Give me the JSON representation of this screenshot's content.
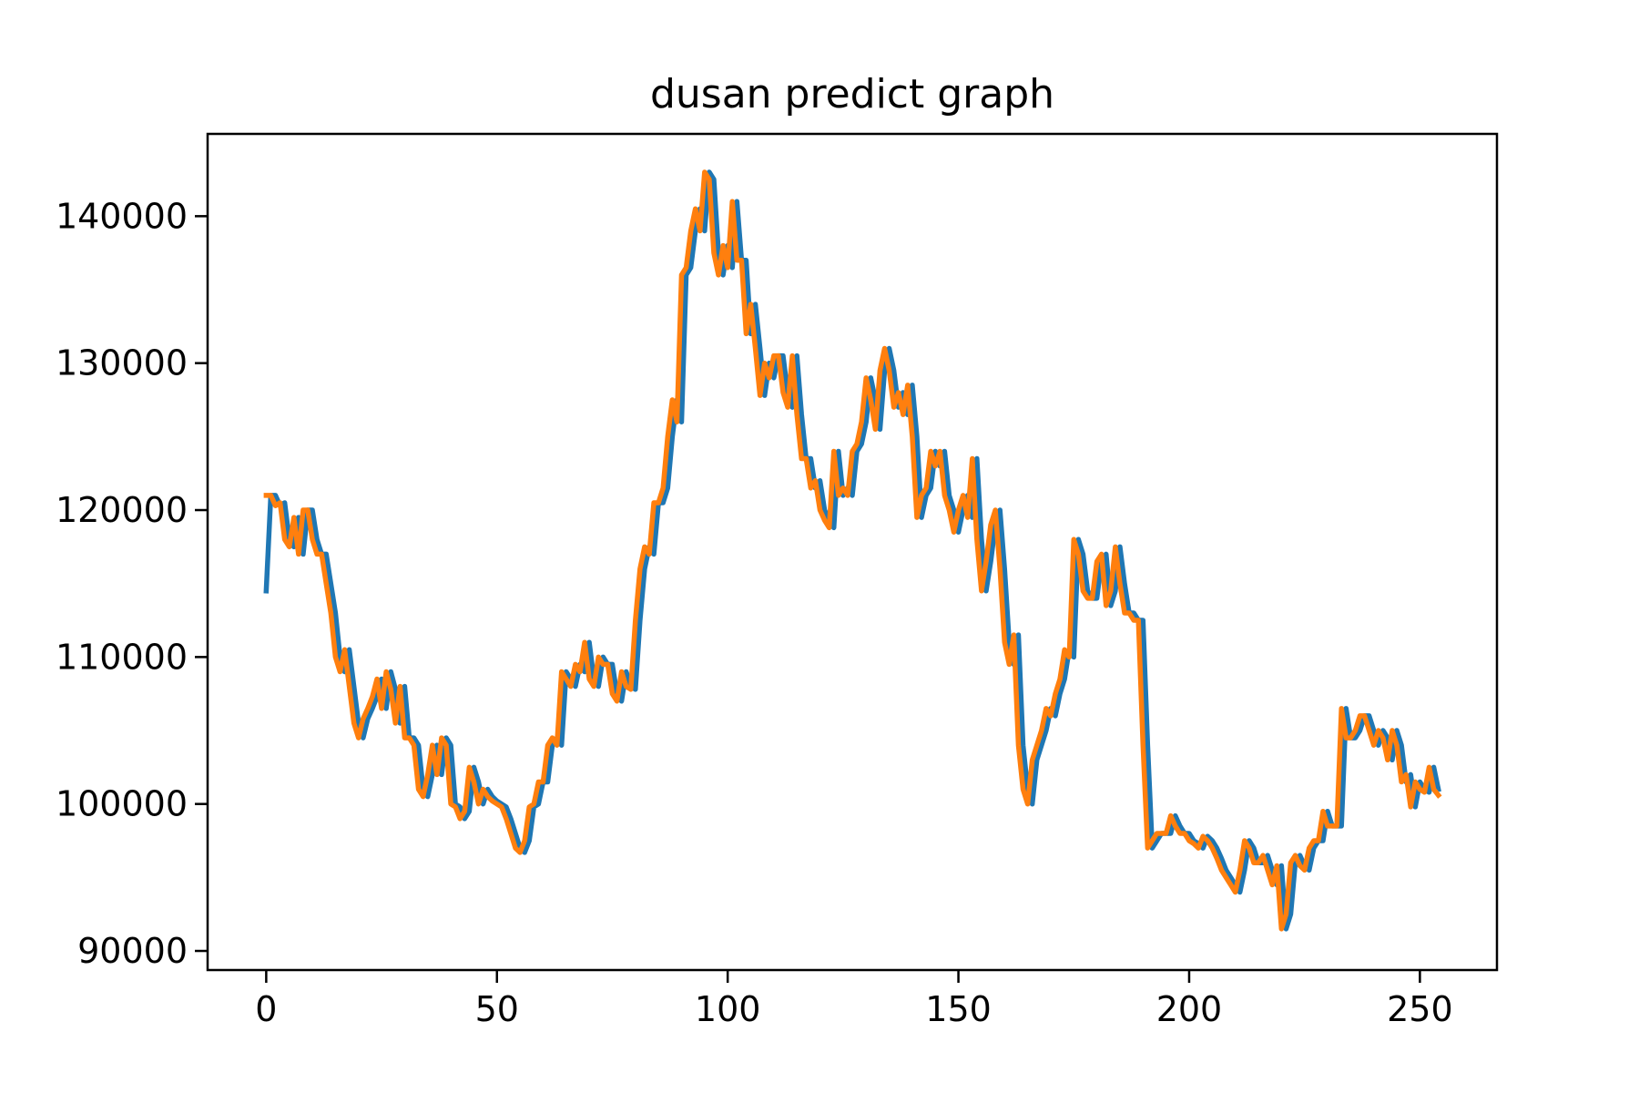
{
  "chart_data": {
    "type": "line",
    "title": "dusan predict graph",
    "x": [
      0,
      1,
      2,
      3,
      4,
      5,
      6,
      7,
      8,
      9,
      10,
      11,
      12,
      13,
      14,
      15,
      16,
      17,
      18,
      19,
      20,
      21,
      22,
      23,
      24,
      25,
      26,
      27,
      28,
      29,
      30,
      31,
      32,
      33,
      34,
      35,
      36,
      37,
      38,
      39,
      40,
      41,
      42,
      43,
      44,
      45,
      46,
      47,
      48,
      49,
      50,
      51,
      52,
      53,
      54,
      55,
      56,
      57,
      58,
      59,
      60,
      61,
      62,
      63,
      64,
      65,
      66,
      67,
      68,
      69,
      70,
      71,
      72,
      73,
      74,
      75,
      76,
      77,
      78,
      79,
      80,
      81,
      82,
      83,
      84,
      85,
      86,
      87,
      88,
      89,
      90,
      91,
      92,
      93,
      94,
      95,
      96,
      97,
      98,
      99,
      100,
      101,
      102,
      103,
      104,
      105,
      106,
      107,
      108,
      109,
      110,
      111,
      112,
      113,
      114,
      115,
      116,
      117,
      118,
      119,
      120,
      121,
      122,
      123,
      124,
      125,
      126,
      127,
      128,
      129,
      130,
      131,
      132,
      133,
      134,
      135,
      136,
      137,
      138,
      139,
      140,
      141,
      142,
      143,
      144,
      145,
      146,
      147,
      148,
      149,
      150,
      151,
      152,
      153,
      154,
      155,
      156,
      157,
      158,
      159,
      160,
      161,
      162,
      163,
      164,
      165,
      166,
      167,
      168,
      169,
      170,
      171,
      172,
      173,
      174,
      175,
      176,
      177,
      178,
      179,
      180,
      181,
      182,
      183,
      184,
      185,
      186,
      187,
      188,
      189,
      190,
      191,
      192,
      193,
      194,
      195,
      196,
      197,
      198,
      199,
      200,
      201,
      202,
      203,
      204,
      205,
      206,
      207,
      208,
      209,
      210,
      211,
      212,
      213,
      214,
      215,
      216,
      217,
      218,
      219,
      220,
      221,
      222,
      223,
      224,
      225,
      226,
      227,
      228,
      229,
      230,
      231,
      232,
      233,
      234,
      235,
      236,
      237,
      238,
      239,
      240,
      241,
      242,
      243,
      244,
      245,
      246,
      247,
      248,
      249,
      250,
      251,
      252,
      253,
      254
    ],
    "series": [
      {
        "color": "#1f77b4",
        "values": [
          114500,
          121000,
          121000,
          120300,
          120500,
          118000,
          117500,
          119500,
          117000,
          120000,
          120000,
          118000,
          117000,
          117000,
          115000,
          113000,
          110000,
          109000,
          110500,
          108000,
          105500,
          104500,
          105800,
          106500,
          107300,
          108500,
          106500,
          109000,
          107800,
          105500,
          108000,
          104500,
          104500,
          104000,
          101000,
          100500,
          102000,
          104000,
          102000,
          104500,
          104000,
          100000,
          99800,
          99000,
          99500,
          102500,
          101500,
          100000,
          101000,
          100500,
          100200,
          100000,
          99800,
          99000,
          98000,
          97000,
          96700,
          97500,
          99800,
          100000,
          101500,
          101500,
          104000,
          104500,
          104000,
          109000,
          108500,
          108000,
          109500,
          109000,
          111000,
          108500,
          108000,
          110000,
          109500,
          109500,
          107500,
          107000,
          109000,
          108000,
          107800,
          112500,
          116000,
          117500,
          117000,
          120500,
          120500,
          121500,
          125000,
          127500,
          126000,
          136000,
          136500,
          139000,
          140500,
          139000,
          143000,
          142500,
          137500,
          136000,
          138000,
          136500,
          141000,
          137000,
          137000,
          132000,
          134000,
          131000,
          127800,
          130000,
          129000,
          130500,
          130500,
          128000,
          127000,
          130500,
          126500,
          123500,
          123500,
          121500,
          122000,
          120000,
          119300,
          118800,
          124000,
          121000,
          121500,
          121000,
          124000,
          124500,
          126000,
          129000,
          127500,
          125500,
          129500,
          131000,
          129500,
          127000,
          128000,
          126500,
          128500,
          125000,
          119500,
          121000,
          121500,
          124000,
          123000,
          124000,
          121000,
          120000,
          118500,
          120000,
          121000,
          119500,
          123500,
          118000,
          114500,
          116500,
          119000,
          120000,
          116000,
          111000,
          109500,
          111500,
          104000,
          101000,
          100000,
          103000,
          104000,
          105000,
          106500,
          106000,
          107500,
          108500,
          110500,
          110000,
          118000,
          117000,
          114500,
          114000,
          114000,
          116500,
          117000,
          113500,
          114500,
          117500,
          115000,
          113000,
          113000,
          112500,
          112500,
          104000,
          97000,
          97500,
          98000,
          98000,
          98000,
          99200,
          98500,
          98000,
          98000,
          97500,
          97300,
          97000,
          97800,
          97500,
          97000,
          96300,
          95500,
          95000,
          94500,
          94000,
          95500,
          97500,
          97000,
          96000,
          96000,
          96500,
          95500,
          94500,
          95800,
          91500,
          92500,
          96000,
          96500,
          95800,
          95500,
          97000,
          97500,
          97500,
          99500,
          98500,
          98500,
          98500,
          106500,
          104500,
          104500,
          105000,
          106000,
          106000,
          105000,
          104000,
          105000,
          104500,
          103000,
          105000,
          104000,
          101500,
          102000,
          99800,
          101500,
          101000,
          100800,
          102500,
          101000
        ]
      },
      {
        "color": "#ff7f0e",
        "values": [
          121000,
          121000,
          120300,
          120500,
          118000,
          117500,
          119500,
          117000,
          120000,
          120000,
          118000,
          117000,
          117000,
          115000,
          113000,
          110000,
          109000,
          110500,
          108000,
          105500,
          104500,
          105800,
          106500,
          107300,
          108500,
          106500,
          109000,
          107800,
          105500,
          108000,
          104500,
          104500,
          104000,
          101000,
          100500,
          102000,
          104000,
          102000,
          104500,
          104000,
          100000,
          99800,
          99000,
          99500,
          102500,
          101500,
          100000,
          101000,
          100500,
          100200,
          100000,
          99800,
          99000,
          98000,
          97000,
          96700,
          97500,
          99800,
          100000,
          101500,
          101500,
          104000,
          104500,
          104000,
          109000,
          108500,
          108000,
          109500,
          109000,
          111000,
          108500,
          108000,
          110000,
          109500,
          109500,
          107500,
          107000,
          109000,
          108000,
          107800,
          112500,
          116000,
          117500,
          117000,
          120500,
          120500,
          121500,
          125000,
          127500,
          126000,
          136000,
          136500,
          139000,
          140500,
          139000,
          143000,
          142500,
          137500,
          136000,
          138000,
          136500,
          141000,
          137000,
          137000,
          132000,
          134000,
          131000,
          127800,
          130000,
          129000,
          130500,
          130500,
          128000,
          127000,
          130500,
          126500,
          123500,
          123500,
          121500,
          122000,
          120000,
          119300,
          118800,
          124000,
          121000,
          121500,
          121000,
          124000,
          124500,
          126000,
          129000,
          127500,
          125500,
          129500,
          131000,
          129500,
          127000,
          128000,
          126500,
          128500,
          125000,
          119500,
          121000,
          121500,
          124000,
          123000,
          124000,
          121000,
          120000,
          118500,
          120000,
          121000,
          119500,
          123500,
          118000,
          114500,
          116500,
          119000,
          120000,
          116000,
          111000,
          109500,
          111500,
          104000,
          101000,
          100000,
          103000,
          104000,
          105000,
          106500,
          106000,
          107500,
          108500,
          110500,
          110000,
          118000,
          117000,
          114500,
          114000,
          114000,
          116500,
          117000,
          113500,
          114500,
          117500,
          115000,
          113000,
          113000,
          112500,
          112500,
          104000,
          97000,
          97500,
          98000,
          98000,
          98000,
          99200,
          98500,
          98000,
          98000,
          97500,
          97300,
          97000,
          97800,
          97500,
          97000,
          96300,
          95500,
          95000,
          94500,
          94000,
          95500,
          97500,
          97000,
          96000,
          96000,
          96500,
          95500,
          94500,
          95800,
          91500,
          92500,
          96000,
          96500,
          95800,
          95500,
          97000,
          97500,
          97500,
          99500,
          98500,
          98500,
          98500,
          106500,
          104500,
          104500,
          105000,
          106000,
          106000,
          105000,
          104000,
          105000,
          104500,
          103000,
          105000,
          104000,
          101500,
          102000,
          99800,
          101500,
          101000,
          100800,
          102500,
          101000,
          100600
        ]
      }
    ],
    "xlim": [
      -12.7,
      266.7
    ],
    "xticks": [
      0,
      50,
      100,
      150,
      200,
      250
    ],
    "ylim": [
      88700,
      145600
    ],
    "yticks": [
      90000,
      100000,
      110000,
      120000,
      130000,
      140000
    ]
  }
}
